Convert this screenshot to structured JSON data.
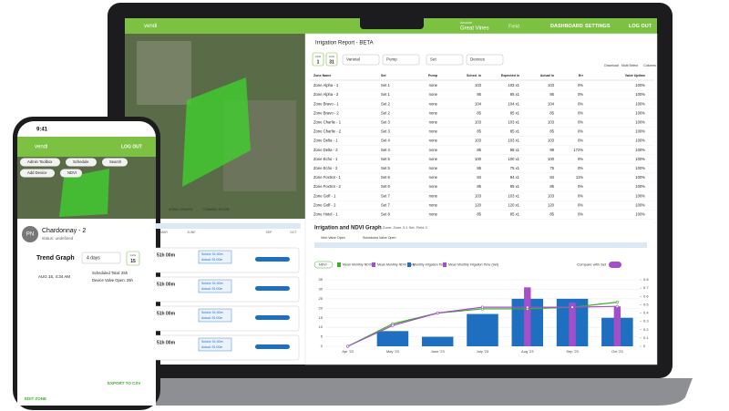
{
  "laptop": {
    "logo": "vendi",
    "account_label": "Account",
    "account": "Great Vines",
    "field": "Field",
    "nav": [
      "DASHBOARD",
      "SETTINGS",
      "LOG OUT"
    ],
    "report_title": "Irrigation Report - BETA",
    "date_from": [
      "AUG",
      "1"
    ],
    "date_to": [
      "AUG",
      "31"
    ],
    "filters": [
      "Varietal",
      "Pump",
      "Set",
      "Devices"
    ],
    "tools": [
      "Download",
      "Multi Select",
      "Columns"
    ],
    "table": {
      "headers": [
        "Zone Name",
        "Set",
        "Pump",
        "Sched. in",
        "Expected in",
        "Actual in",
        "Err",
        "Valve Uptime"
      ],
      "rows": [
        [
          "Zone Alpha - 1",
          "Set 1",
          "none",
          "103",
          "103 x1",
          "103",
          "0%",
          "100%"
        ],
        [
          "Zone Alpha - 2",
          "Set 1",
          "none",
          "85",
          "85 x1",
          "85",
          "0%",
          "100%"
        ],
        [
          "Zone Bravo - 1",
          "Set 2",
          "none",
          "104",
          "104 x1",
          "104",
          "0%",
          "100%"
        ],
        [
          "Zone Bravo - 2",
          "Set 2",
          "none",
          "85",
          "85 x1",
          "85",
          "0%",
          "100%"
        ],
        [
          "Zone Charlie - 1",
          "Set 3",
          "none",
          "103",
          "103 x1",
          "103",
          "0%",
          "100%"
        ],
        [
          "Zone Charlie - 2",
          "Set 3",
          "none",
          "85",
          "85 x1",
          "85",
          "0%",
          "100%"
        ],
        [
          "Zone Delta - 1",
          "Set 4",
          "none",
          "103",
          "103 x1",
          "103",
          "0%",
          "100%"
        ],
        [
          "Zone Delta - 2",
          "Set 4",
          "none",
          "85",
          "98 x1",
          "98",
          "172%",
          "100%"
        ],
        [
          "Zone Echo - 1",
          "Set 5",
          "none",
          "100",
          "100 x1",
          "100",
          "0%",
          "100%"
        ],
        [
          "Zone Echo - 2",
          "Set 5",
          "none",
          "85",
          "75 x1",
          "75",
          "0%",
          "100%"
        ],
        [
          "Zone Foxtrot - 1",
          "Set 6",
          "none",
          "84",
          "84 x1",
          "84",
          "11%",
          "100%"
        ],
        [
          "Zone Foxtrot - 2",
          "Set 6",
          "none",
          "85",
          "85 x1",
          "85",
          "0%",
          "100%"
        ],
        [
          "Zone Golf - 1",
          "Set 7",
          "none",
          "103",
          "103 x1",
          "103",
          "0%",
          "100%"
        ],
        [
          "Zone Golf - 2",
          "Set 7",
          "none",
          "120",
          "120 x1",
          "120",
          "0%",
          "100%"
        ],
        [
          "Zone Hotel - 1",
          "Set 8",
          "none",
          "85",
          "85 x1",
          "85",
          "0%",
          "100%"
        ]
      ]
    },
    "side_tabs": [
      "ZONE GRAPH",
      "COMING SOON"
    ],
    "side_months": [
      "MAR",
      "JUNE",
      "SEP",
      "OCT"
    ],
    "cards": [
      {
        "time": "51h 00m",
        "sched": "Sched: 51:00m",
        "actual": "Actual: 51:00m"
      },
      {
        "time": "51h 00m",
        "sched": "Sched: 51:00m",
        "actual": "Actual: 51:00m"
      },
      {
        "time": "51h 00m",
        "sched": "Sched: 51:00m",
        "actual": "Actual: 51:00m"
      },
      {
        "time": "51h 00m",
        "sched": "Sched: 51:00m",
        "actual": "Actual: 51:00m"
      }
    ],
    "graph": {
      "title": "Irrigation and NDVI Graph",
      "subtitle": "Zone: Zone 3-1  Set: Field 3",
      "timeline_legend": [
        "Vent Valve Open",
        "Scheduled Valve Open"
      ],
      "toggle": "Compare with Set",
      "categories": [
        "Apr '23",
        "May '23",
        "June '23",
        "July '23",
        "Aug '23",
        "Sep '23",
        "Oct '23"
      ],
      "ylim": [
        0,
        35
      ],
      "yticks": [
        0,
        5,
        10,
        15,
        20,
        25,
        30,
        35
      ],
      "y2lim": [
        0,
        0.8
      ],
      "y2ticks": [
        0,
        0.1,
        0.2,
        0.3,
        0.4,
        0.5,
        0.6,
        0.7,
        0.8
      ],
      "legend_extra": "NDVI",
      "series": [
        {
          "name": "Monthly Irrigation Time",
          "type": "bar",
          "color": "#1f6fc0",
          "values": [
            0,
            8,
            5,
            17,
            25,
            25,
            15
          ]
        },
        {
          "name": "Mean Monthly Irrigation Time (Set)",
          "type": "bar",
          "color": "#a24fc9",
          "values": [
            null,
            null,
            null,
            null,
            31,
            23,
            21
          ]
        },
        {
          "name": "Mean Monthly NDVI",
          "type": "line",
          "axis": "y2",
          "color": "#3dae2b",
          "values": [
            0,
            0.27,
            0.4,
            0.45,
            0.45,
            0.47,
            0.53
          ]
        },
        {
          "name": "Mean Monthly NDVI (Set)",
          "type": "line",
          "axis": "y2",
          "color": "#a24fc9",
          "values": [
            0,
            0.25,
            0.4,
            0.47,
            0.47,
            0.47,
            0.48
          ]
        }
      ]
    }
  },
  "phone": {
    "time": "9:41",
    "logo": "vendi",
    "logout": "LOG OUT",
    "buttons": [
      "Admin Toolbox",
      "Schedule",
      "Search",
      "Add Device",
      "NDVI"
    ],
    "avatar": "PN",
    "zone": "Chardonnay - 2",
    "status": "status: undefined",
    "trend": "Trend Graph",
    "range": "4 days",
    "date": [
      "AUG",
      "15"
    ],
    "tooltip": "AUG 15, 4:34 AM",
    "legend": [
      "Scheduled Total: 25h",
      "Device Valve Open: 25h"
    ],
    "export": "EXPORT TO CSV",
    "edit": "EDIT ZONE"
  }
}
